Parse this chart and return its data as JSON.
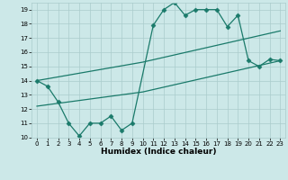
{
  "title": "",
  "xlabel": "Humidex (Indice chaleur)",
  "bg_color": "#cce8e8",
  "grid_color": "#aacccc",
  "line_color": "#1a7a6a",
  "xlim": [
    -0.5,
    23.5
  ],
  "ylim": [
    10,
    19.5
  ],
  "yticks": [
    10,
    11,
    12,
    13,
    14,
    15,
    16,
    17,
    18,
    19
  ],
  "xticks": [
    0,
    1,
    2,
    3,
    4,
    5,
    6,
    7,
    8,
    9,
    10,
    11,
    12,
    13,
    14,
    15,
    16,
    17,
    18,
    19,
    20,
    21,
    22,
    23
  ],
  "line1_x": [
    0,
    1,
    2,
    3,
    4,
    5,
    6,
    7,
    8,
    9,
    11,
    12,
    13,
    14,
    15,
    16,
    17,
    18,
    19,
    20,
    21,
    22,
    23
  ],
  "line1_y": [
    14.0,
    13.6,
    12.5,
    11.0,
    10.1,
    11.0,
    11.0,
    11.5,
    10.5,
    11.0,
    17.9,
    19.0,
    19.5,
    18.6,
    19.0,
    19.0,
    19.0,
    17.8,
    18.6,
    15.4,
    15.0,
    15.5,
    15.4
  ],
  "line2_x": [
    0,
    10,
    23
  ],
  "line2_y": [
    14.0,
    15.3,
    17.5
  ],
  "line3_x": [
    0,
    10,
    23
  ],
  "line3_y": [
    12.2,
    13.2,
    15.4
  ]
}
